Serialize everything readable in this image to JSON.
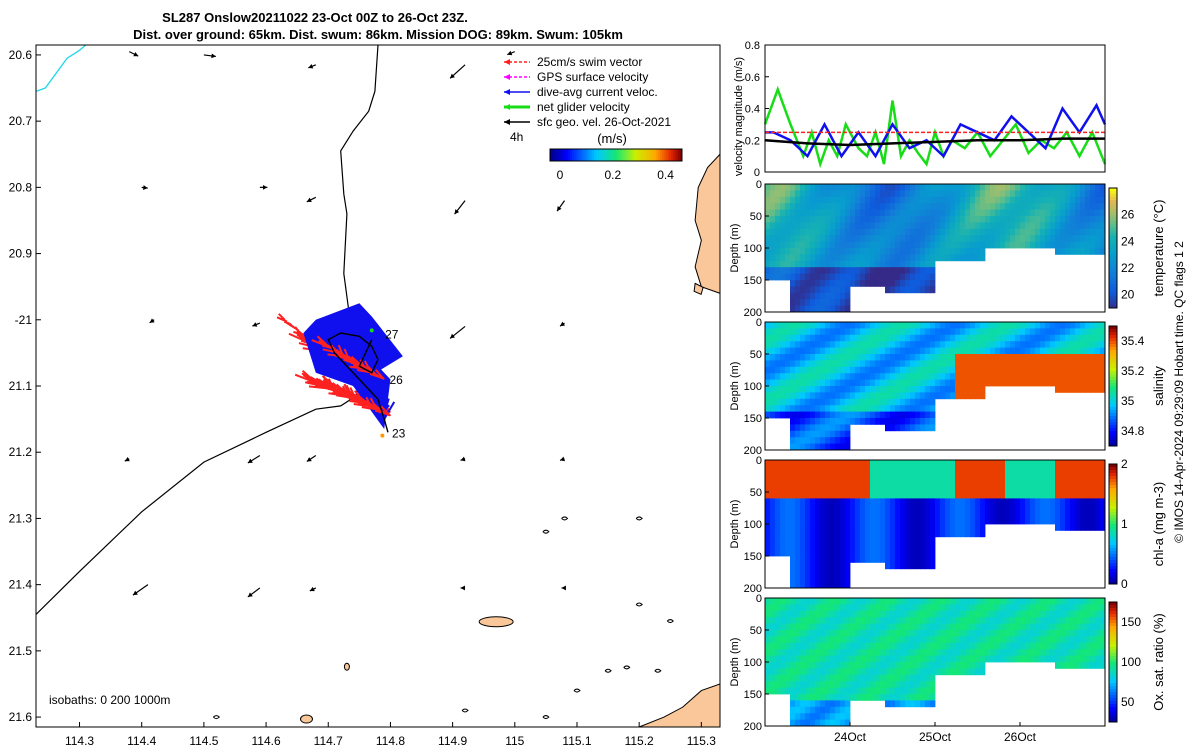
{
  "title": {
    "line1": "SL287 Onslow20211022 23-Oct 00Z to 26-Oct 23Z.",
    "line2": "Dist. over ground: 65km. Dist. swum: 86km. Mission DOG: 89km. Swum: 105km"
  },
  "side_note": "© IMOS 14-Apr-2024 09:29:09 Hobart time. QC flags 1  2",
  "colors": {
    "land": "#f9c79a",
    "coast_cyan": "#22d8e8",
    "swim_red": "#ff2020",
    "dac_blue": "#1010ee",
    "net_green": "#17dd17",
    "gps_magenta": "#ff00ff",
    "black": "#000000"
  },
  "chart_data": [
    {
      "id": "map",
      "type": "scatter",
      "xlim": [
        114.23,
        115.33
      ],
      "ylim": [
        -21.615,
        -20.585
      ],
      "x_ticks": [
        114.3,
        114.4,
        114.5,
        114.6,
        114.7,
        114.8,
        114.9,
        115,
        115.1,
        115.2,
        115.3
      ],
      "x_tick_labels": [
        "114.3",
        "114.4",
        "114.5",
        "114.6",
        "114.7",
        "114.8",
        "114.9",
        "115",
        "115.1",
        "115.2",
        "115.3"
      ],
      "y_ticks": [
        -20.6,
        -20.7,
        -20.8,
        -20.9,
        -21,
        -21.1,
        -21.2,
        -21.3,
        -21.4,
        -21.5,
        -21.6
      ],
      "y_tick_labels": [
        "20.6",
        "20.7",
        "20.8",
        "20.9",
        "-21",
        "21.1",
        "21.2",
        "21.3",
        "21.4",
        "21.5",
        "21.6"
      ],
      "legend": [
        "25cm/s swim vector",
        "GPS surface velocity",
        "dive-avg current veloc.",
        "net glider velocity",
        "sfc geo. vel. 26-Oct-2021"
      ],
      "legend_extra": "4h",
      "colorbar": {
        "label": "(m/s)",
        "ticks": [
          0,
          0.2,
          0.4
        ],
        "tick_labels": [
          "0",
          "0.2",
          "0.4"
        ],
        "range": [
          0,
          0.5
        ]
      },
      "isobath_label": "isobaths: 0   200  1000m",
      "day_labels": [
        {
          "text": "27",
          "lon": 114.785,
          "lat": -21.022
        },
        {
          "text": "26",
          "lon": 114.792,
          "lat": -21.091
        },
        {
          "text": "23",
          "lon": 114.796,
          "lat": -21.172
        }
      ],
      "isobath_0m": [
        [
          114.23,
          -21.445
        ],
        [
          114.3,
          -21.38
        ],
        [
          114.4,
          -21.29
        ],
        [
          114.5,
          -21.215
        ],
        [
          114.6,
          -21.17
        ],
        [
          114.68,
          -21.135
        ],
        [
          114.72,
          -21.13
        ],
        [
          114.745,
          -21.115
        ],
        [
          114.75,
          -21.08
        ],
        [
          114.735,
          -21.0
        ],
        [
          114.725,
          -20.93
        ],
        [
          114.73,
          -20.84
        ],
        [
          114.725,
          -20.81
        ],
        [
          114.72,
          -20.745
        ],
        [
          114.74,
          -20.715
        ],
        [
          114.765,
          -20.685
        ],
        [
          114.775,
          -20.655
        ],
        [
          114.78,
          -20.585
        ]
      ],
      "isobath_cyan": [
        [
          114.23,
          -20.655
        ],
        [
          114.245,
          -20.65
        ],
        [
          114.28,
          -20.605
        ],
        [
          114.3,
          -20.593
        ],
        [
          114.31,
          -20.585
        ]
      ],
      "geo_vectors": [
        {
          "lon": 114.38,
          "lat": -20.595,
          "u": 0.06,
          "v": -0.03
        },
        {
          "lon": 114.5,
          "lat": -20.6,
          "u": 0.08,
          "v": -0.01
        },
        {
          "lon": 114.68,
          "lat": -20.615,
          "u": -0.05,
          "v": -0.02
        },
        {
          "lon": 114.92,
          "lat": -20.615,
          "u": -0.1,
          "v": -0.09
        },
        {
          "lon": 115.0,
          "lat": -20.595,
          "u": -0.05,
          "v": -0.02
        },
        {
          "lon": 114.4,
          "lat": -20.8,
          "u": 0.04,
          "v": -0.005
        },
        {
          "lon": 114.59,
          "lat": -20.8,
          "u": 0.05,
          "v": 0.0
        },
        {
          "lon": 114.68,
          "lat": -20.815,
          "u": -0.06,
          "v": -0.03
        },
        {
          "lon": 114.92,
          "lat": -20.82,
          "u": -0.07,
          "v": -0.09
        },
        {
          "lon": 115.08,
          "lat": -20.82,
          "u": -0.05,
          "v": -0.07
        },
        {
          "lon": 114.42,
          "lat": -21.0,
          "u": -0.03,
          "v": -0.02
        },
        {
          "lon": 114.59,
          "lat": -21.005,
          "u": -0.05,
          "v": -0.02
        },
        {
          "lon": 114.92,
          "lat": -21.01,
          "u": -0.1,
          "v": -0.08
        },
        {
          "lon": 115.08,
          "lat": -21.005,
          "u": -0.03,
          "v": -0.02
        },
        {
          "lon": 114.38,
          "lat": -21.21,
          "u": -0.03,
          "v": -0.015
        },
        {
          "lon": 114.59,
          "lat": -21.205,
          "u": -0.08,
          "v": -0.05
        },
        {
          "lon": 114.68,
          "lat": -21.205,
          "u": -0.06,
          "v": -0.04
        },
        {
          "lon": 114.92,
          "lat": -21.21,
          "u": -0.03,
          "v": -0.01
        },
        {
          "lon": 115.08,
          "lat": -21.21,
          "u": -0.03,
          "v": -0.01
        },
        {
          "lon": 114.41,
          "lat": -21.4,
          "u": -0.1,
          "v": -0.07
        },
        {
          "lon": 114.59,
          "lat": -21.405,
          "u": -0.08,
          "v": -0.06
        },
        {
          "lon": 114.68,
          "lat": -21.405,
          "u": -0.04,
          "v": -0.02
        },
        {
          "lon": 114.92,
          "lat": -21.405,
          "u": -0.03,
          "v": 0.0
        },
        {
          "lon": 115.08,
          "lat": -21.405,
          "u": -0.02,
          "v": 0.0
        }
      ]
    },
    {
      "id": "velocity",
      "type": "line",
      "xlim": [
        23.0,
        27.0
      ],
      "ylim": [
        0,
        0.8
      ],
      "y_ticks": [
        0,
        0.2,
        0.4,
        0.6,
        0.8
      ],
      "y_tick_labels": [
        "0",
        "0.2",
        "0.4",
        "0.6",
        "0.8"
      ],
      "ylabel": "velocity magnitude (m/s)",
      "series": [
        {
          "color": "#17dd17",
          "x": [
            23.0,
            23.15,
            23.3,
            23.45,
            23.55,
            23.65,
            23.75,
            23.85,
            23.95,
            24.1,
            24.2,
            24.3,
            24.4,
            24.5,
            24.6,
            24.7,
            24.8,
            24.9,
            25.0,
            25.1,
            25.2,
            25.35,
            25.5,
            25.65,
            25.8,
            25.95,
            26.1,
            26.25,
            26.4,
            26.55,
            26.7,
            26.85,
            27.0
          ],
          "y": [
            0.3,
            0.52,
            0.3,
            0.1,
            0.25,
            0.05,
            0.2,
            0.1,
            0.3,
            0.15,
            0.1,
            0.25,
            0.05,
            0.45,
            0.1,
            0.2,
            0.12,
            0.05,
            0.25,
            0.1,
            0.2,
            0.15,
            0.25,
            0.1,
            0.2,
            0.3,
            0.12,
            0.2,
            0.15,
            0.25,
            0.1,
            0.25,
            0.05
          ]
        },
        {
          "color": "#1010ee",
          "x": [
            23.0,
            23.1,
            23.3,
            23.5,
            23.7,
            23.9,
            24.1,
            24.3,
            24.5,
            24.7,
            24.9,
            25.1,
            25.3,
            25.5,
            25.7,
            25.9,
            26.1,
            26.3,
            26.5,
            26.7,
            26.9,
            27.0
          ],
          "y": [
            0.25,
            0.25,
            0.2,
            0.1,
            0.3,
            0.1,
            0.25,
            0.1,
            0.3,
            0.15,
            0.2,
            0.1,
            0.3,
            0.25,
            0.2,
            0.35,
            0.25,
            0.15,
            0.4,
            0.25,
            0.42,
            0.3
          ]
        },
        {
          "color": "#ff2020",
          "x": [
            23.0,
            27.0
          ],
          "y": [
            0.25,
            0.25
          ]
        },
        {
          "color": "#000000",
          "x": [
            23.0,
            23.5,
            24.0,
            24.5,
            25.0,
            25.5,
            26.0,
            26.5,
            27.0
          ],
          "y": [
            0.2,
            0.18,
            0.17,
            0.18,
            0.19,
            0.2,
            0.2,
            0.21,
            0.21
          ]
        }
      ]
    },
    {
      "id": "temperature",
      "type": "heatmap",
      "ylabel": "Depth (m)",
      "cbar_label": "temperature (°C)",
      "ylim": [
        200,
        0
      ],
      "y_ticks": [
        0,
        50,
        100,
        150,
        200
      ],
      "y_tick_labels": [
        "0",
        "50",
        "100",
        "150",
        "200"
      ],
      "cbar_ticks": [
        20,
        22,
        24,
        26
      ],
      "cbar_range": [
        19,
        28
      ]
    },
    {
      "id": "salinity",
      "type": "heatmap",
      "ylabel": "Depth (m)",
      "cbar_label": "salinity",
      "ylim": [
        200,
        0
      ],
      "y_ticks": [
        0,
        50,
        100,
        150,
        200
      ],
      "y_tick_labels": [
        "0",
        "50",
        "100",
        "150",
        "200"
      ],
      "cbar_ticks": [
        34.8,
        35,
        35.2,
        35.4
      ],
      "cbar_range": [
        34.7,
        35.5
      ]
    },
    {
      "id": "chla",
      "type": "heatmap",
      "ylabel": "Depth (m)",
      "cbar_label": "chl-a (mg m-3)",
      "ylim": [
        200,
        0
      ],
      "y_ticks": [
        0,
        50,
        100,
        150,
        200
      ],
      "y_tick_labels": [
        "0",
        "50",
        "100",
        "150",
        "200"
      ],
      "cbar_ticks": [
        0,
        1,
        2
      ],
      "cbar_range": [
        0,
        2
      ]
    },
    {
      "id": "oxygen",
      "type": "heatmap",
      "ylabel": "Depth (m)",
      "cbar_label": "Ox. sat. ratio (%)",
      "ylim": [
        200,
        0
      ],
      "y_ticks": [
        0,
        50,
        100,
        150,
        200
      ],
      "y_tick_labels": [
        "0",
        "50",
        "100",
        "150",
        "200"
      ],
      "cbar_ticks": [
        50,
        100,
        150
      ],
      "cbar_range": [
        25,
        175
      ],
      "xlim": [
        23.0,
        27.0
      ],
      "x_ticks": [
        24.0,
        25.0,
        26.0
      ],
      "x_tick_labels": [
        "24Oct",
        "25Oct",
        "26Oct"
      ]
    }
  ]
}
